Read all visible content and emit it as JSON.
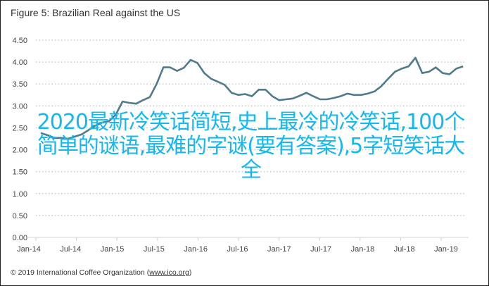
{
  "title": "Figure 5: Brazilian Real against the US",
  "footer": {
    "prefix": "© 2019 International Coffee Organization (",
    "link": "www.ico.org",
    "suffix": ")"
  },
  "overlay_text": "2020最新冷笑话简短,史上最冷的冷笑话,100个简单的谜语,最难的字谜(要有答案),5字短笑话大全",
  "colors": {
    "line": "#4f7b8c",
    "overlay": "#14b8ef",
    "grid": "#c8c8c8"
  },
  "chart_data": {
    "type": "line",
    "title": "Figure 5: Brazilian Real against the US",
    "xlabel": "",
    "ylabel": "",
    "ylim": [
      0,
      4.5
    ],
    "yticks": [
      "0.00",
      "0.50",
      "1.00",
      "1.50",
      "2.00",
      "2.50",
      "3.00",
      "3.50",
      "4.00",
      "4.50"
    ],
    "xticks": [
      "Jan-14",
      "Jul-14",
      "Jan-15",
      "Jul-15",
      "Jan-16",
      "Jul-16",
      "Jan-17",
      "Jul-17",
      "Jan-18",
      "Jul-18",
      "Jan-19"
    ],
    "grid": "horizontal dotted",
    "x_start": "Jan-14",
    "x_step": "month",
    "values": [
      2.38,
      2.33,
      2.27,
      2.27,
      2.25,
      2.3,
      2.35,
      2.45,
      2.55,
      2.62,
      2.65,
      2.8,
      3.1,
      3.07,
      3.05,
      3.13,
      3.2,
      3.5,
      3.88,
      3.88,
      3.8,
      3.87,
      4.05,
      3.98,
      3.75,
      3.62,
      3.55,
      3.48,
      3.3,
      3.25,
      3.27,
      3.22,
      3.37,
      3.37,
      3.22,
      3.13,
      3.15,
      3.17,
      3.23,
      3.3,
      3.22,
      3.15,
      3.15,
      3.18,
      3.22,
      3.28,
      3.25,
      3.25,
      3.28,
      3.33,
      3.45,
      3.62,
      3.78,
      3.85,
      3.9,
      4.1,
      3.75,
      3.78,
      3.88,
      3.75,
      3.72,
      3.85,
      3.9
    ]
  }
}
